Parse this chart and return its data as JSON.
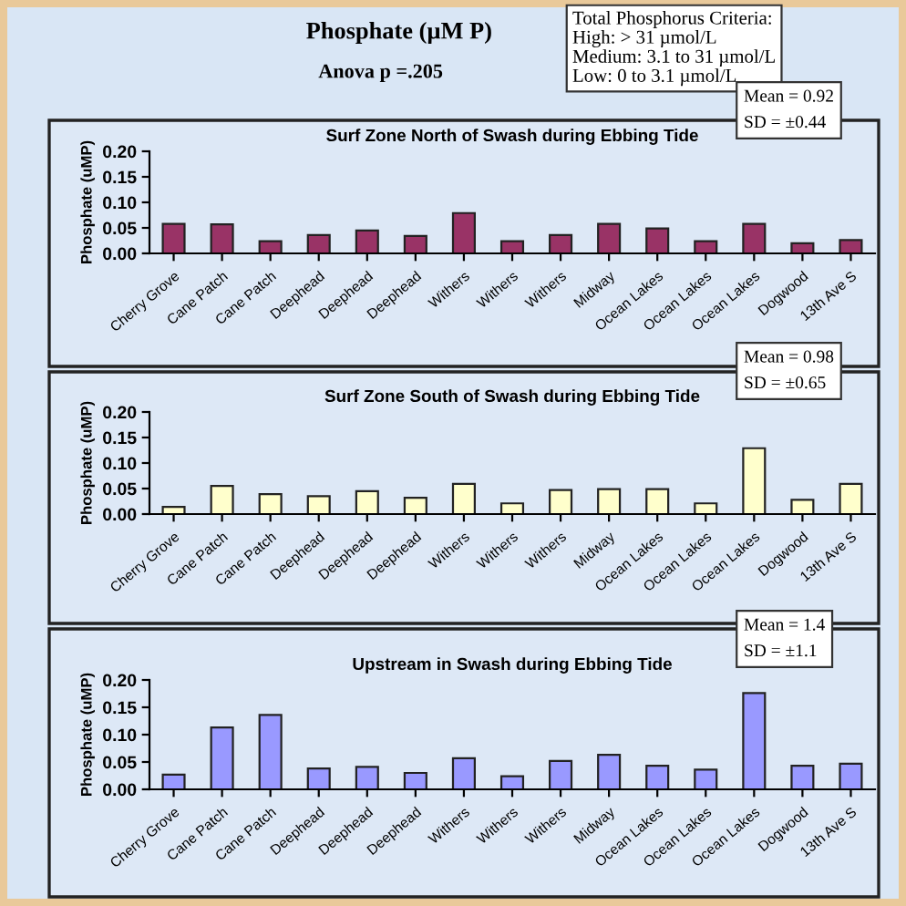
{
  "chart_data": [
    {
      "type": "other",
      "title": "Phosphate (µM P)",
      "subtitle": "Anova p =.205",
      "annotations": [
        "Total Phosphorus Criteria:\nHigh: > 31 µmol/L\nMedium: 3.1 to 31 µmol/L\nLow: 0 to 3.1 µmol/L"
      ]
    },
    {
      "type": "bar",
      "title": "Surf Zone North of Swash during Ebbing Tide",
      "ylabel": "Phosphate (uMP)",
      "categories": [
        "Cherry Grove",
        "Cane Patch",
        "Cane Patch",
        "Deephead",
        "Deephead",
        "Deephead",
        "Withers",
        "Withers",
        "Withers",
        "Midway",
        "Ocean Lakes",
        "Ocean Lakes",
        "Ocean Lakes",
        "Dogwood",
        "13th Ave S"
      ],
      "values": [
        0.058,
        0.057,
        0.024,
        0.036,
        0.045,
        0.034,
        0.079,
        0.024,
        0.036,
        0.058,
        0.049,
        0.024,
        0.058,
        0.02,
        0.026
      ],
      "color": "#993366",
      "ylim": [
        0,
        0.2
      ],
      "yticks": [
        {
          "value": 0,
          "label": "0.00"
        },
        {
          "value": 0.05,
          "label": "0.05"
        },
        {
          "value": 0.1,
          "label": "0.10"
        },
        {
          "value": 0.15,
          "label": "0.15"
        },
        {
          "value": 0.2,
          "label": "0.20"
        }
      ],
      "grid": false,
      "legend": false,
      "annotations": [
        "Mean = 0.92",
        "SD = ±0.44"
      ]
    },
    {
      "type": "bar",
      "title": "Surf Zone South of Swash during Ebbing Tide",
      "ylabel": "Phosphate (uMP)",
      "categories": [
        "Cherry Grove",
        "Cane Patch",
        "Cane Patch",
        "Deephead",
        "Deephead",
        "Deephead",
        "Withers",
        "Withers",
        "Withers",
        "Midway",
        "Ocean Lakes",
        "Ocean Lakes",
        "Ocean Lakes",
        "Dogwood",
        "13th Ave S"
      ],
      "values": [
        0.014,
        0.055,
        0.039,
        0.035,
        0.045,
        0.032,
        0.059,
        0.021,
        0.047,
        0.049,
        0.049,
        0.021,
        0.129,
        0.028,
        0.059
      ],
      "color": "#ffffcc",
      "ylim": [
        0,
        0.2
      ],
      "yticks": [
        {
          "value": 0,
          "label": "0.00"
        },
        {
          "value": 0.05,
          "label": "0.05"
        },
        {
          "value": 0.1,
          "label": "0.10"
        },
        {
          "value": 0.15,
          "label": "0.15"
        },
        {
          "value": 0.2,
          "label": "0.20"
        }
      ],
      "grid": false,
      "legend": false,
      "annotations": [
        "Mean = 0.98",
        "SD = ±0.65"
      ]
    },
    {
      "type": "bar",
      "title": "Upstream in Swash during Ebbing Tide",
      "ylabel": "Phosphate (uMP)",
      "categories": [
        "Cherry Grove",
        "Cane Patch",
        "Cane Patch",
        "Deephead",
        "Deephead",
        "Deephead",
        "Withers",
        "Withers",
        "Withers",
        "Midway",
        "Ocean Lakes",
        "Ocean Lakes",
        "Ocean Lakes",
        "Dogwood",
        "13th Ave S"
      ],
      "values": [
        0.027,
        0.113,
        0.136,
        0.038,
        0.041,
        0.03,
        0.057,
        0.024,
        0.052,
        0.063,
        0.043,
        0.036,
        0.176,
        0.043,
        0.047
      ],
      "color": "#9999ff",
      "ylim": [
        0,
        0.2
      ],
      "yticks": [
        {
          "value": 0,
          "label": "0.00"
        },
        {
          "value": 0.05,
          "label": "0.05"
        },
        {
          "value": 0.1,
          "label": "0.10"
        },
        {
          "value": 0.15,
          "label": "0.15"
        },
        {
          "value": 0.2,
          "label": "0.20"
        }
      ],
      "grid": false,
      "legend": false,
      "annotations": [
        "Mean = 1.4",
        "SD = ±1.1"
      ]
    }
  ]
}
